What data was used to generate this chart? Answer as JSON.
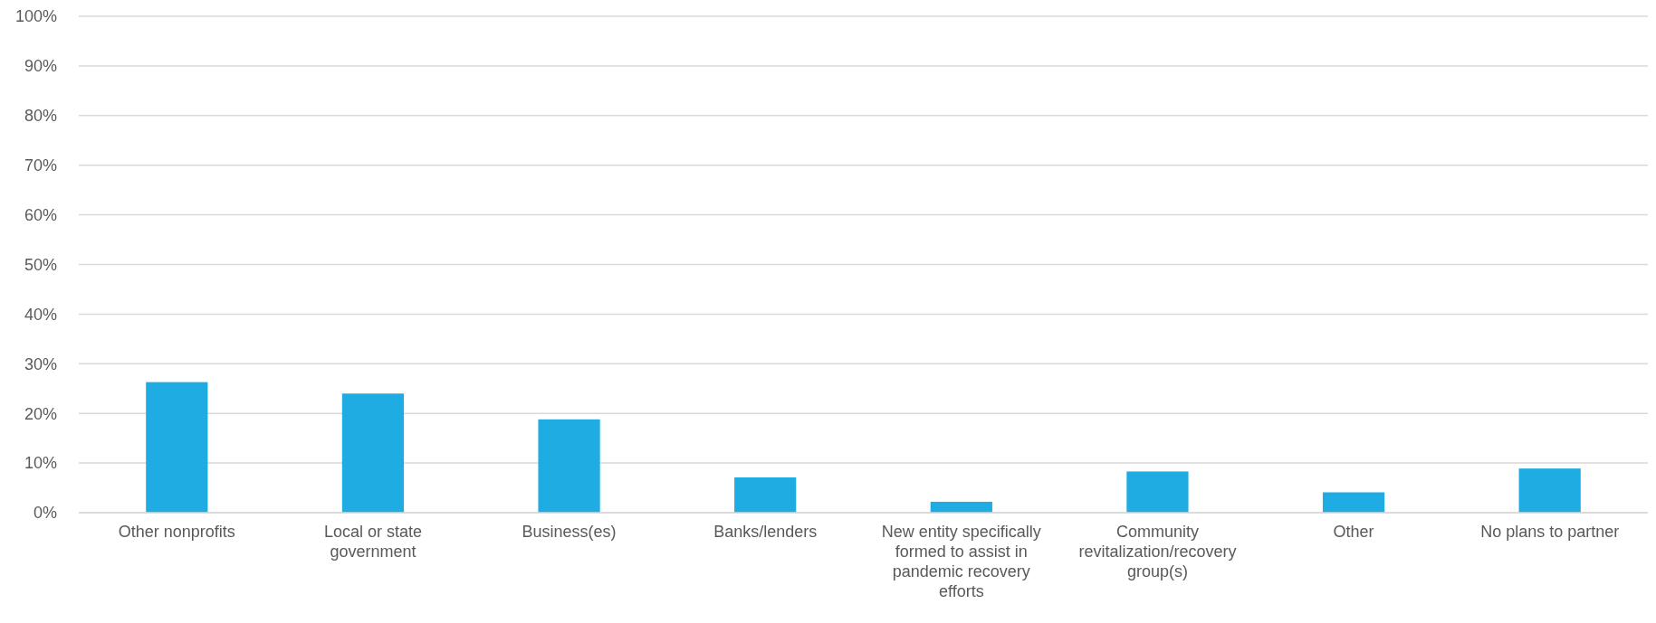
{
  "chart_data": {
    "type": "bar",
    "categories": [
      "Other nonprofits",
      "Local or state government",
      "Business(es)",
      "Banks/lenders",
      "New entity specifically formed to assist in pandemic recovery efforts",
      "Community revitalization/recovery group(s)",
      "Other",
      "No plans to partner"
    ],
    "values": [
      26.3,
      24.0,
      18.8,
      7.1,
      2.2,
      8.3,
      4.1,
      8.9
    ],
    "color": "#1facE3",
    "ylim": [
      0,
      100
    ],
    "yticks": [
      {
        "value": 0,
        "label": "0%"
      },
      {
        "value": 10,
        "label": "10%"
      },
      {
        "value": 20,
        "label": "20%"
      },
      {
        "value": 30,
        "label": "30%"
      },
      {
        "value": 40,
        "label": "40%"
      },
      {
        "value": 50,
        "label": "50%"
      },
      {
        "value": 60,
        "label": "60%"
      },
      {
        "value": 70,
        "label": "70%"
      },
      {
        "value": 80,
        "label": "80%"
      },
      {
        "value": 90,
        "label": "90%"
      },
      {
        "value": 100,
        "label": "100%"
      }
    ],
    "grid": "y"
  }
}
